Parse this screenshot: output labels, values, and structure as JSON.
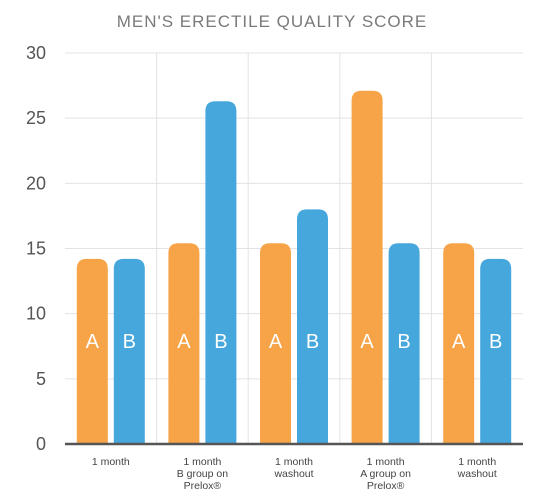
{
  "chart_data": {
    "type": "bar",
    "title": "MEN'S ERECTILE QUALITY SCORE",
    "xlabel": "",
    "ylabel": "",
    "ylim": [
      0,
      30
    ],
    "yticks": [
      0,
      5,
      10,
      15,
      20,
      25,
      30
    ],
    "grid": true,
    "legend": "none",
    "categories": [
      [
        "1 month"
      ],
      [
        "1 month",
        "B group on",
        "Prelox®"
      ],
      [
        "1 month",
        "washout"
      ],
      [
        "1 month",
        "A group on",
        "Prelox®"
      ],
      [
        "1 month",
        "washout"
      ]
    ],
    "series": [
      {
        "name": "A",
        "color": "#f7a348",
        "values": [
          14.2,
          15.4,
          15.4,
          27.1,
          15.4
        ]
      },
      {
        "name": "B",
        "color": "#46a7dc",
        "values": [
          14.2,
          26.3,
          18.0,
          15.4,
          14.2
        ]
      }
    ]
  }
}
